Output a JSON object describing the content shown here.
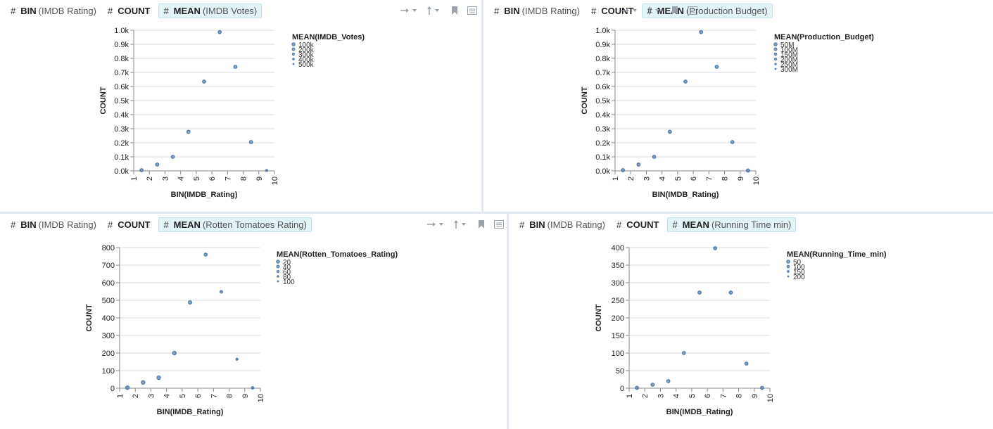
{
  "colors": {
    "accent": "#4c78a8",
    "highlight": "#e3f4f6",
    "grid": "#dddddd"
  },
  "panels": [
    {
      "shelves": [
        {
          "hash": "#",
          "fn": "BIN",
          "field": "(IMDB Rating)"
        },
        {
          "hash": "#",
          "fn": "COUNT",
          "field": ""
        },
        {
          "hash": "#",
          "fn": "MEAN",
          "field": "(IMDB Votes)"
        }
      ],
      "tools": [
        "arrow-right-icon",
        "arrow-up-icon",
        "bookmark-icon",
        "list-icon"
      ],
      "legend": {
        "title": "MEAN(IMDB_Votes)",
        "items": [
          "100k",
          "200k",
          "300k",
          "400k",
          "500k"
        ]
      }
    },
    {
      "shelves": [
        {
          "hash": "#",
          "fn": "BIN",
          "field": "(IMDB Rating)"
        },
        {
          "hash": "#",
          "fn": "COUNT",
          "field": ""
        },
        {
          "hash": "#",
          "fn": "MEAN",
          "field": "(Production Budget)"
        }
      ],
      "tools": [
        "arrow-right-icon",
        "arrow-up-icon",
        "bookmark-icon",
        "list-icon"
      ],
      "legend": {
        "title": "MEAN(Production_Budget)",
        "items": [
          "50M",
          "100M",
          "150M",
          "200M",
          "250M",
          "300M"
        ]
      }
    },
    {
      "shelves": [
        {
          "hash": "#",
          "fn": "BIN",
          "field": "(IMDB Rating)"
        },
        {
          "hash": "#",
          "fn": "COUNT",
          "field": ""
        },
        {
          "hash": "#",
          "fn": "MEAN",
          "field": "(Rotten Tomatoes Rating)"
        }
      ],
      "tools": [
        "arrow-right-icon",
        "arrow-up-icon",
        "bookmark-icon",
        "list-icon"
      ],
      "legend": {
        "title": "MEAN(Rotten_Tomatoes_Rating)",
        "items": [
          "20",
          "40",
          "60",
          "80",
          "100"
        ]
      }
    },
    {
      "shelves": [
        {
          "hash": "#",
          "fn": "BIN",
          "field": "(IMDB Rating)"
        },
        {
          "hash": "#",
          "fn": "COUNT",
          "field": ""
        },
        {
          "hash": "#",
          "fn": "MEAN",
          "field": "(Running Time min)"
        }
      ],
      "tools": [
        "arrow-right-icon",
        "arrow-up-icon",
        "bookmark-icon",
        "list-icon"
      ],
      "legend": {
        "title": "MEAN(Running_Time_min)",
        "items": [
          "50",
          "100",
          "150",
          "200"
        ]
      }
    }
  ],
  "chart_data": [
    {
      "type": "scatter",
      "xlabel": "BIN(IMDB_Rating)",
      "ylabel": "COUNT",
      "x_ticks": [
        "1",
        "2",
        "3",
        "4",
        "5",
        "6",
        "7",
        "8",
        "9",
        "10"
      ],
      "xlim": [
        1,
        10
      ],
      "y_ticks": [
        "0.0k",
        "0.1k",
        "0.2k",
        "0.3k",
        "0.4k",
        "0.5k",
        "0.6k",
        "0.7k",
        "0.8k",
        "0.9k",
        "1.0k"
      ],
      "ylim": [
        0,
        1000
      ],
      "grid": "horizontal",
      "points": [
        {
          "x": 1.5,
          "y": 5,
          "size": 0.5
        },
        {
          "x": 2.5,
          "y": 45,
          "size": 0.5
        },
        {
          "x": 3.5,
          "y": 100,
          "size": 0.5
        },
        {
          "x": 4.5,
          "y": 278,
          "size": 0.5
        },
        {
          "x": 5.5,
          "y": 635,
          "size": 0.5
        },
        {
          "x": 6.5,
          "y": 987,
          "size": 0.5
        },
        {
          "x": 7.5,
          "y": 740,
          "size": 0.5
        },
        {
          "x": 8.5,
          "y": 205,
          "size": 0.5
        },
        {
          "x": 9.5,
          "y": 3,
          "size": 0.2
        }
      ]
    },
    {
      "type": "scatter",
      "xlabel": "BIN(IMDB_Rating)",
      "ylabel": "COUNT",
      "x_ticks": [
        "1",
        "2",
        "3",
        "4",
        "5",
        "6",
        "7",
        "8",
        "9",
        "10"
      ],
      "xlim": [
        1,
        10
      ],
      "y_ticks": [
        "0.0k",
        "0.1k",
        "0.2k",
        "0.3k",
        "0.4k",
        "0.5k",
        "0.6k",
        "0.7k",
        "0.8k",
        "0.9k",
        "1.0k"
      ],
      "ylim": [
        0,
        1000
      ],
      "grid": "horizontal",
      "points": [
        {
          "x": 1.5,
          "y": 5,
          "size": 0.5
        },
        {
          "x": 2.5,
          "y": 45,
          "size": 0.5
        },
        {
          "x": 3.5,
          "y": 100,
          "size": 0.5
        },
        {
          "x": 4.5,
          "y": 278,
          "size": 0.5
        },
        {
          "x": 5.5,
          "y": 635,
          "size": 0.5
        },
        {
          "x": 6.5,
          "y": 987,
          "size": 0.5
        },
        {
          "x": 7.5,
          "y": 740,
          "size": 0.5
        },
        {
          "x": 8.5,
          "y": 205,
          "size": 0.5
        },
        {
          "x": 9.5,
          "y": 3,
          "size": 0.5
        }
      ]
    },
    {
      "type": "scatter",
      "xlabel": "BIN(IMDB_Rating)",
      "ylabel": "COUNT",
      "x_ticks": [
        "1",
        "2",
        "3",
        "4",
        "5",
        "6",
        "7",
        "8",
        "9",
        "10"
      ],
      "xlim": [
        1,
        10
      ],
      "y_ticks": [
        "0",
        "100",
        "200",
        "300",
        "400",
        "500",
        "600",
        "700",
        "800"
      ],
      "ylim": [
        0,
        800
      ],
      "grid": "horizontal",
      "points": [
        {
          "x": 1.5,
          "y": 3,
          "size": 0.6
        },
        {
          "x": 2.5,
          "y": 33,
          "size": 0.6
        },
        {
          "x": 3.5,
          "y": 60,
          "size": 0.6
        },
        {
          "x": 4.5,
          "y": 200,
          "size": 0.6
        },
        {
          "x": 5.5,
          "y": 488,
          "size": 0.55
        },
        {
          "x": 6.5,
          "y": 760,
          "size": 0.45
        },
        {
          "x": 7.5,
          "y": 548,
          "size": 0.35
        },
        {
          "x": 8.5,
          "y": 165,
          "size": 0.2
        },
        {
          "x": 9.5,
          "y": 2,
          "size": 0.3
        }
      ]
    },
    {
      "type": "scatter",
      "xlabel": "BIN(IMDB_Rating)",
      "ylabel": "COUNT",
      "x_ticks": [
        "1",
        "2",
        "3",
        "4",
        "5",
        "6",
        "7",
        "8",
        "9",
        "10"
      ],
      "xlim": [
        1,
        10
      ],
      "y_ticks": [
        "0",
        "50",
        "100",
        "150",
        "200",
        "250",
        "300",
        "350",
        "400"
      ],
      "ylim": [
        0,
        400
      ],
      "grid": "horizontal",
      "points": [
        {
          "x": 1.5,
          "y": 1,
          "size": 0.5
        },
        {
          "x": 2.5,
          "y": 10,
          "size": 0.5
        },
        {
          "x": 3.5,
          "y": 20,
          "size": 0.5
        },
        {
          "x": 4.5,
          "y": 100,
          "size": 0.5
        },
        {
          "x": 5.5,
          "y": 272,
          "size": 0.5
        },
        {
          "x": 6.5,
          "y": 398,
          "size": 0.5
        },
        {
          "x": 7.5,
          "y": 272,
          "size": 0.5
        },
        {
          "x": 8.5,
          "y": 70,
          "size": 0.5
        },
        {
          "x": 9.5,
          "y": 1,
          "size": 0.5
        }
      ]
    }
  ]
}
